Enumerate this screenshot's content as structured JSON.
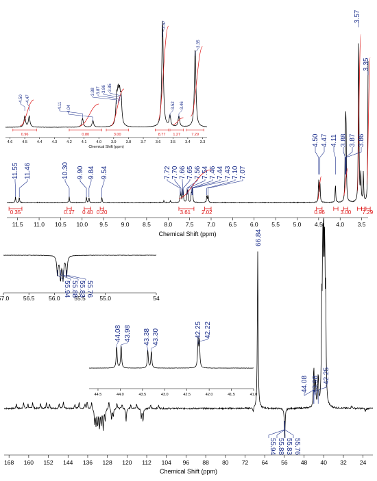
{
  "chart_data": [
    {
      "id": "h1_main",
      "type": "line",
      "xlabel": "Chemical Shift (ppm)",
      "xlim": [
        11.75,
        3.35
      ],
      "ticks": [
        "11.5",
        "11.0",
        "10.5",
        "10.0",
        "9.5",
        "9.0",
        "8.5",
        "8.0",
        "7.5",
        "7.0",
        "6.5",
        "6.0",
        "5.5",
        "5.0",
        "4.5",
        "4.0",
        "3.5"
      ],
      "peak_labels": [
        "11.55",
        "11.46",
        "10.30",
        "9.90",
        "9.84",
        "9.54",
        "7.72",
        "7.70",
        "7.66",
        "7.65",
        "7.56",
        "7.54",
        "7.46",
        "7.44",
        "7.43",
        "7.10",
        "7.07",
        "4.50",
        "4.47",
        "4.11",
        "3.88",
        "3.87",
        "3.86",
        "3.57",
        "3.35"
      ],
      "integrals": [
        {
          "x": [
            11.7,
            11.4
          ],
          "value": "0.35"
        },
        {
          "x": [
            10.35,
            10.25
          ],
          "value": "0.17"
        },
        {
          "x": [
            9.95,
            9.8
          ],
          "value": "0.40"
        },
        {
          "x": [
            9.58,
            9.5
          ],
          "value": "0.20"
        },
        {
          "x": [
            7.75,
            7.4
          ],
          "value": "3.61"
        },
        {
          "x": [
            7.15,
            7.0
          ],
          "value": "2.02"
        },
        {
          "x": [
            4.55,
            4.42
          ],
          "value": "0.96"
        },
        {
          "x": [
            4.15,
            4.05
          ],
          "value": "0.80"
        },
        {
          "x": [
            3.92,
            3.82
          ],
          "value": "3.00"
        },
        {
          "x": [
            3.6,
            3.5
          ],
          "value": "8.77"
        },
        {
          "x": [
            3.5,
            3.43
          ],
          "value": "1.27"
        },
        {
          "x": [
            3.4,
            3.3
          ],
          "value": "7.29"
        }
      ],
      "visible_integral_labels": [
        "0.35",
        "0.17",
        "0.40",
        "0.20",
        "3.61",
        "2.02",
        "0.96",
        "3.00",
        "7.29"
      ],
      "peaks": [
        {
          "ppm": 11.55,
          "h": 0.03
        },
        {
          "ppm": 11.46,
          "h": 0.03
        },
        {
          "ppm": 10.3,
          "h": 0.03
        },
        {
          "ppm": 9.9,
          "h": 0.03
        },
        {
          "ppm": 9.84,
          "h": 0.03
        },
        {
          "ppm": 9.54,
          "h": 0.03
        },
        {
          "ppm": 8.1,
          "h": 0.01
        },
        {
          "ppm": 7.95,
          "h": 0.01
        },
        {
          "ppm": 7.72,
          "h": 0.04
        },
        {
          "ppm": 7.7,
          "h": 0.05
        },
        {
          "ppm": 7.66,
          "h": 0.05
        },
        {
          "ppm": 7.65,
          "h": 0.05
        },
        {
          "ppm": 7.56,
          "h": 0.06
        },
        {
          "ppm": 7.54,
          "h": 0.06
        },
        {
          "ppm": 7.46,
          "h": 0.05
        },
        {
          "ppm": 7.44,
          "h": 0.05
        },
        {
          "ppm": 7.43,
          "h": 0.05
        },
        {
          "ppm": 7.1,
          "h": 0.04
        },
        {
          "ppm": 7.07,
          "h": 0.04
        },
        {
          "ppm": 4.5,
          "h": 0.12
        },
        {
          "ppm": 4.47,
          "h": 0.12
        },
        {
          "ppm": 4.11,
          "h": 0.1
        },
        {
          "ppm": 3.88,
          "h": 0.27
        },
        {
          "ppm": 3.87,
          "h": 0.28
        },
        {
          "ppm": 3.86,
          "h": 0.27
        },
        {
          "ppm": 3.57,
          "h": 0.97
        },
        {
          "ppm": 3.52,
          "h": 0.16
        },
        {
          "ppm": 3.46,
          "h": 0.16
        },
        {
          "ppm": 3.35,
          "h": 0.75
        }
      ]
    },
    {
      "id": "h1_inset",
      "type": "line",
      "xlabel": "Chemical Shift (ppm)",
      "xlim": [
        4.63,
        3.27
      ],
      "ticks": [
        "4.6",
        "4.5",
        "4.4",
        "4.3",
        "4.2",
        "4.1",
        "4.0",
        "3.9",
        "3.8",
        "3.7",
        "3.6",
        "3.5",
        "3.4",
        "3.3"
      ],
      "peak_labels": [
        "4.50",
        "4.47",
        "4.11",
        "4.04",
        "3.88",
        "3.87",
        "3.86",
        "3.85",
        "3.57",
        "3.52",
        "3.46",
        "3.35"
      ],
      "integral_labels": [
        "0.96",
        "0.80",
        "3.00",
        "8.77",
        "1.27",
        "7.29"
      ],
      "peaks": [
        {
          "ppm": 4.5,
          "h": 0.1
        },
        {
          "ppm": 4.47,
          "h": 0.1
        },
        {
          "ppm": 4.11,
          "h": 0.08
        },
        {
          "ppm": 4.04,
          "h": 0.06
        },
        {
          "ppm": 3.88,
          "h": 0.24
        },
        {
          "ppm": 3.87,
          "h": 0.25
        },
        {
          "ppm": 3.86,
          "h": 0.24
        },
        {
          "ppm": 3.85,
          "h": 0.23
        },
        {
          "ppm": 3.57,
          "h": 0.98
        },
        {
          "ppm": 3.52,
          "h": 0.1
        },
        {
          "ppm": 3.46,
          "h": 0.1
        },
        {
          "ppm": 3.35,
          "h": 0.72
        }
      ]
    },
    {
      "id": "c13_main",
      "type": "line",
      "xlabel": "Chemical Shift (ppm)",
      "xlim": [
        170,
        20
      ],
      "ticks": [
        "168",
        "160",
        "152",
        "144",
        "136",
        "128",
        "120",
        "112",
        "104",
        "96",
        "88",
        "80",
        "72",
        "64",
        "56",
        "48",
        "40",
        "32",
        "24"
      ],
      "peak_labels_up": [
        "66.84",
        "44.08",
        "43.98",
        "42.25"
      ],
      "peak_labels_down": [
        "55.94",
        "55.88",
        "55.83",
        "55.76"
      ],
      "peaks": [
        {
          "ppm": 66.84,
          "h": 1.0
        },
        {
          "ppm": 44.08,
          "h": 0.13
        },
        {
          "ppm": 43.98,
          "h": 0.14
        },
        {
          "ppm": 43.38,
          "h": 0.09
        },
        {
          "ppm": 43.3,
          "h": 0.08
        },
        {
          "ppm": 42.25,
          "h": 0.2
        },
        {
          "ppm": 40.0,
          "h": 0.95
        },
        {
          "ppm": 40.4,
          "h": 0.9
        },
        {
          "ppm": 39.6,
          "h": 0.88
        },
        {
          "ppm": 39.2,
          "h": 0.6
        },
        {
          "ppm": 40.8,
          "h": 0.55
        },
        {
          "ppm": 55.88,
          "h": -0.1
        },
        {
          "ppm": 55.83,
          "h": -0.1
        },
        {
          "ppm": 133.2,
          "h": -0.09
        },
        {
          "ppm": 132.6,
          "h": -0.11
        },
        {
          "ppm": 131.9,
          "h": -0.1
        },
        {
          "ppm": 131.2,
          "h": -0.12
        },
        {
          "ppm": 130.5,
          "h": -0.1
        },
        {
          "ppm": 129.7,
          "h": -0.13
        },
        {
          "ppm": 128.9,
          "h": -0.08
        },
        {
          "ppm": 126.3,
          "h": -0.07
        },
        {
          "ppm": 125.6,
          "h": -0.05
        },
        {
          "ppm": 120.4,
          "h": -0.08
        },
        {
          "ppm": 114.2,
          "h": -0.06
        },
        {
          "ppm": 113.5,
          "h": -0.08
        },
        {
          "ppm": 165.0,
          "h": 0.03
        },
        {
          "ppm": 162.1,
          "h": 0.04
        },
        {
          "ppm": 160.3,
          "h": 0.03
        },
        {
          "ppm": 158.4,
          "h": 0.04
        },
        {
          "ppm": 155.2,
          "h": 0.03
        },
        {
          "ppm": 152.8,
          "h": 0.04
        },
        {
          "ppm": 151.5,
          "h": 0.03
        },
        {
          "ppm": 147.6,
          "h": 0.03
        },
        {
          "ppm": 145.9,
          "h": 0.04
        },
        {
          "ppm": 141.2,
          "h": 0.03
        },
        {
          "ppm": 139.5,
          "h": 0.04
        },
        {
          "ppm": 137.1,
          "h": 0.03
        },
        {
          "ppm": 136.2,
          "h": 0.05
        },
        {
          "ppm": 134.4,
          "h": 0.04
        },
        {
          "ppm": 127.4,
          "h": 0.05
        },
        {
          "ppm": 124.1,
          "h": 0.04
        },
        {
          "ppm": 122.0,
          "h": 0.03
        },
        {
          "ppm": 118.5,
          "h": 0.03
        },
        {
          "ppm": 116.1,
          "h": 0.03
        },
        {
          "ppm": 110.4,
          "h": 0.02
        },
        {
          "ppm": 107.2,
          "h": 0.02
        },
        {
          "ppm": 68.7,
          "h": -0.03
        },
        {
          "ppm": 28.6,
          "h": 0.02
        },
        {
          "ppm": 23.0,
          "h": -0.02
        }
      ]
    },
    {
      "id": "c13_inset_methoxy",
      "type": "line",
      "xlim": [
        57.0,
        54.0
      ],
      "ticks": [
        "57.0",
        "56.5",
        "56.0",
        "55.5",
        "55.0",
        "54"
      ],
      "peak_labels": [
        "55.94",
        "55.88",
        "55.83",
        "55.76"
      ],
      "peaks": [
        {
          "ppm": 55.94,
          "h": -0.75
        },
        {
          "ppm": 55.88,
          "h": -0.9
        },
        {
          "ppm": 55.83,
          "h": -0.9
        },
        {
          "ppm": 55.76,
          "h": -0.8
        }
      ]
    },
    {
      "id": "c13_inset_aliphatic",
      "type": "line",
      "xlim": [
        44.7,
        41.0
      ],
      "ticks": [
        "44.5",
        "44.0",
        "43.5",
        "43.0",
        "42.5",
        "42.0",
        "41.5",
        "41.0"
      ],
      "peak_labels": [
        "44.08",
        "43.98",
        "43.38",
        "43.30",
        "42.25",
        "42.22"
      ],
      "peaks": [
        {
          "ppm": 44.08,
          "h": 0.55
        },
        {
          "ppm": 43.98,
          "h": 0.58
        },
        {
          "ppm": 43.38,
          "h": 0.45
        },
        {
          "ppm": 43.3,
          "h": 0.42
        },
        {
          "ppm": 42.25,
          "h": 0.68
        },
        {
          "ppm": 42.22,
          "h": 0.66
        }
      ]
    }
  ]
}
